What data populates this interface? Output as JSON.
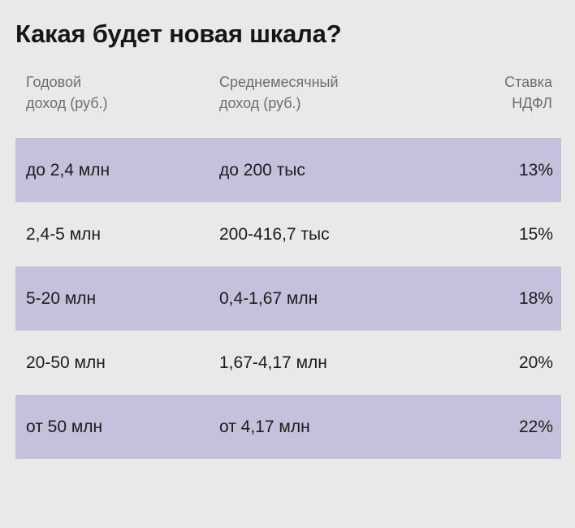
{
  "title": "Какая будет новая шкала?",
  "headers": {
    "annual_income": [
      "Годовой",
      "доход (руб.)"
    ],
    "monthly_income": [
      "Среднемесячный",
      "доход (руб.)"
    ],
    "tax_rate": [
      "Ставка",
      "НДФЛ"
    ]
  },
  "rows": [
    {
      "annual": "до 2,4 млн",
      "monthly": "до 200 тыс",
      "rate": "13%",
      "shaded": true
    },
    {
      "annual": "2,4-5 млн",
      "monthly": "200-416,7 тыс",
      "rate": "15%",
      "shaded": false
    },
    {
      "annual": "5-20 млн",
      "monthly": "0,4-1,67 млн",
      "rate": "18%",
      "shaded": true
    },
    {
      "annual": "20-50 млн",
      "monthly": "1,67-4,17 млн",
      "rate": "20%",
      "shaded": false
    },
    {
      "annual": "от 50 млн",
      "monthly": "от 4,17 млн",
      "rate": "22%",
      "shaded": true
    }
  ],
  "colors": {
    "background": "#e9e9e9",
    "row_highlight": "#c4c1dc",
    "header_text": "#6e6e6e",
    "body_text": "#1c1c1c"
  }
}
